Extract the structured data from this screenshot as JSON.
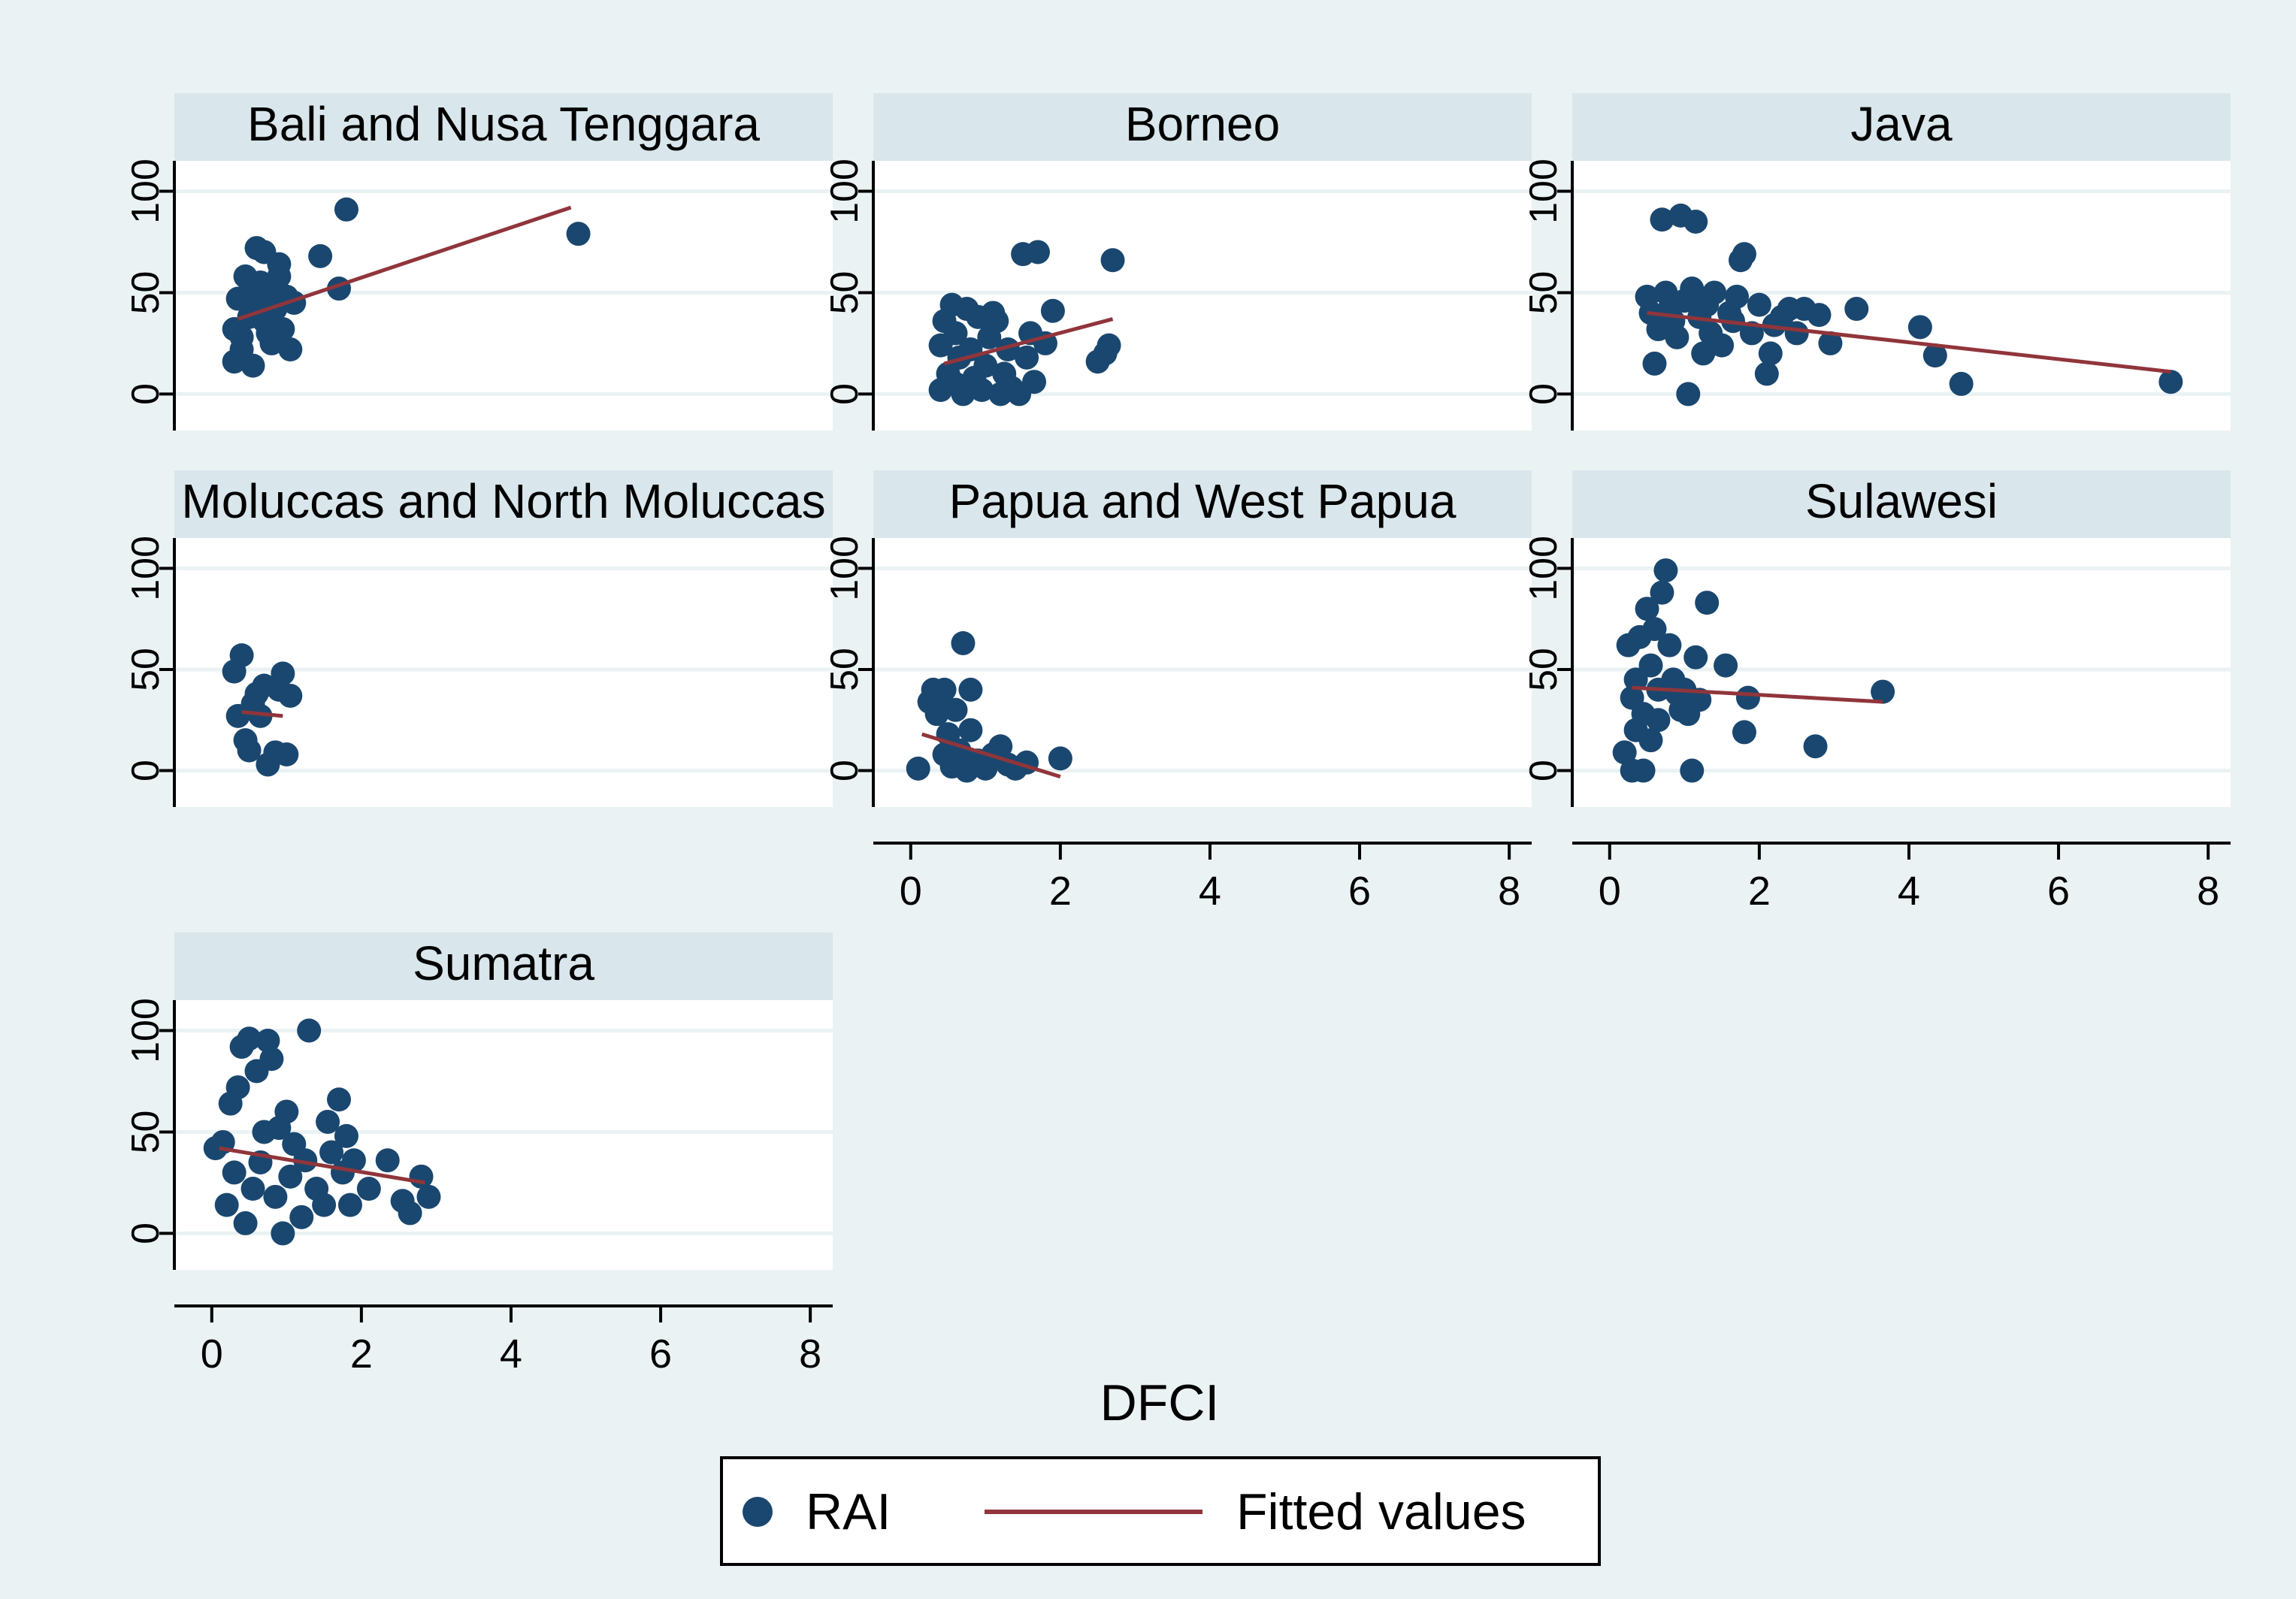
{
  "colors": {
    "outer_bg": "#eaf2f3",
    "plot_bg": "#ffffff",
    "strip_bg": "#d9e6eb",
    "grid": "#eaf2f3",
    "marker": "#1a476f",
    "fit_line": "#90353b",
    "axis": "#000000"
  },
  "chart_data": {
    "type": "scatter",
    "xlabel": "DFCI",
    "ylabel": "",
    "xlim": [
      -0.5,
      8.3
    ],
    "ylim": [
      -18,
      115
    ],
    "xticks": [
      "0",
      "2",
      "4",
      "6",
      "8"
    ],
    "yticks": [
      "0",
      "50",
      "100"
    ],
    "legend": {
      "position": "bottom-center",
      "entries": [
        {
          "label": "RAI",
          "kind": "marker"
        },
        {
          "label": "Fitted values",
          "kind": "line"
        }
      ]
    },
    "panels": [
      {
        "title": "Bali and Nusa Tenggara",
        "points": [
          [
            0.3,
            16
          ],
          [
            0.3,
            32
          ],
          [
            0.35,
            47
          ],
          [
            0.4,
            28
          ],
          [
            0.4,
            22
          ],
          [
            0.45,
            58
          ],
          [
            0.5,
            50
          ],
          [
            0.5,
            38
          ],
          [
            0.55,
            14
          ],
          [
            0.6,
            72
          ],
          [
            0.6,
            46
          ],
          [
            0.65,
            55
          ],
          [
            0.7,
            70
          ],
          [
            0.7,
            36
          ],
          [
            0.75,
            30
          ],
          [
            0.8,
            25
          ],
          [
            0.8,
            50
          ],
          [
            0.85,
            42
          ],
          [
            0.9,
            64
          ],
          [
            0.9,
            58
          ],
          [
            0.95,
            32
          ],
          [
            1.0,
            48
          ],
          [
            1.05,
            22
          ],
          [
            1.1,
            45
          ],
          [
            1.45,
            68
          ],
          [
            1.7,
            52
          ],
          [
            1.8,
            91
          ],
          [
            4.9,
            79
          ]
        ],
        "fit": [
          [
            0.35,
            37
          ],
          [
            4.8,
            92
          ]
        ]
      },
      {
        "title": "Borneo",
        "points": [
          [
            0.4,
            2
          ],
          [
            0.4,
            24
          ],
          [
            0.45,
            36
          ],
          [
            0.5,
            10
          ],
          [
            0.55,
            44
          ],
          [
            0.6,
            30
          ],
          [
            0.6,
            5
          ],
          [
            0.65,
            18
          ],
          [
            0.7,
            0
          ],
          [
            0.75,
            42
          ],
          [
            0.8,
            22
          ],
          [
            0.85,
            8
          ],
          [
            0.9,
            38
          ],
          [
            0.95,
            2
          ],
          [
            1.0,
            14
          ],
          [
            1.05,
            28
          ],
          [
            1.1,
            40
          ],
          [
            1.15,
            36
          ],
          [
            1.2,
            0
          ],
          [
            1.25,
            10
          ],
          [
            1.3,
            22
          ],
          [
            1.35,
            3
          ],
          [
            1.45,
            0
          ],
          [
            1.5,
            69
          ],
          [
            1.55,
            18
          ],
          [
            1.6,
            30
          ],
          [
            1.65,
            6
          ],
          [
            1.7,
            70
          ],
          [
            1.8,
            25
          ],
          [
            1.9,
            41
          ],
          [
            2.5,
            16
          ],
          [
            2.6,
            20
          ],
          [
            2.65,
            24
          ],
          [
            2.7,
            66
          ]
        ],
        "fit": [
          [
            0.45,
            15
          ],
          [
            2.7,
            37
          ]
        ]
      },
      {
        "title": "Java",
        "points": [
          [
            0.5,
            48
          ],
          [
            0.55,
            40
          ],
          [
            0.6,
            15
          ],
          [
            0.65,
            32
          ],
          [
            0.7,
            86
          ],
          [
            0.75,
            50
          ],
          [
            0.8,
            42
          ],
          [
            0.85,
            36
          ],
          [
            0.9,
            28
          ],
          [
            0.95,
            88
          ],
          [
            1.0,
            46
          ],
          [
            1.05,
            0
          ],
          [
            1.1,
            52
          ],
          [
            1.15,
            85
          ],
          [
            1.2,
            38
          ],
          [
            1.25,
            20
          ],
          [
            1.3,
            44
          ],
          [
            1.35,
            30
          ],
          [
            1.4,
            50
          ],
          [
            1.5,
            24
          ],
          [
            1.6,
            40
          ],
          [
            1.65,
            36
          ],
          [
            1.7,
            48
          ],
          [
            1.75,
            66
          ],
          [
            1.8,
            69
          ],
          [
            1.9,
            30
          ],
          [
            2.0,
            44
          ],
          [
            2.1,
            10
          ],
          [
            2.15,
            20
          ],
          [
            2.2,
            34
          ],
          [
            2.3,
            38
          ],
          [
            2.4,
            42
          ],
          [
            2.5,
            30
          ],
          [
            2.6,
            42
          ],
          [
            2.8,
            39
          ],
          [
            2.95,
            25
          ],
          [
            3.3,
            42
          ],
          [
            4.15,
            33
          ],
          [
            4.35,
            19
          ],
          [
            4.7,
            5
          ],
          [
            7.5,
            6
          ]
        ],
        "fit": [
          [
            0.5,
            40
          ],
          [
            7.5,
            11
          ]
        ]
      },
      {
        "title": "Moluccas and North Moluccas",
        "points": [
          [
            0.3,
            49
          ],
          [
            0.35,
            27
          ],
          [
            0.4,
            57
          ],
          [
            0.45,
            15
          ],
          [
            0.5,
            10
          ],
          [
            0.55,
            33
          ],
          [
            0.6,
            38
          ],
          [
            0.65,
            27
          ],
          [
            0.7,
            42
          ],
          [
            0.75,
            3
          ],
          [
            0.85,
            9
          ],
          [
            0.9,
            40
          ],
          [
            0.95,
            48
          ],
          [
            1.0,
            8
          ],
          [
            1.05,
            37
          ]
        ],
        "fit": [
          [
            0.4,
            29
          ],
          [
            0.95,
            27
          ]
        ]
      },
      {
        "title": "Papua and West Papua",
        "points": [
          [
            0.1,
            1
          ],
          [
            0.25,
            34
          ],
          [
            0.3,
            40
          ],
          [
            0.35,
            28
          ],
          [
            0.4,
            36
          ],
          [
            0.45,
            40
          ],
          [
            0.45,
            8
          ],
          [
            0.5,
            18
          ],
          [
            0.55,
            2
          ],
          [
            0.6,
            30
          ],
          [
            0.65,
            10
          ],
          [
            0.7,
            63
          ],
          [
            0.75,
            0
          ],
          [
            0.8,
            20
          ],
          [
            0.8,
            40
          ],
          [
            0.9,
            5
          ],
          [
            1.0,
            1
          ],
          [
            1.1,
            8
          ],
          [
            1.2,
            12
          ],
          [
            1.3,
            3
          ],
          [
            1.4,
            1
          ],
          [
            1.55,
            4
          ],
          [
            2.0,
            6
          ]
        ],
        "fit": [
          [
            0.15,
            18
          ],
          [
            2.0,
            -3
          ]
        ]
      },
      {
        "title": "Sulawesi",
        "points": [
          [
            0.2,
            9
          ],
          [
            0.25,
            62
          ],
          [
            0.3,
            36
          ],
          [
            0.3,
            0
          ],
          [
            0.35,
            20
          ],
          [
            0.35,
            45
          ],
          [
            0.4,
            66
          ],
          [
            0.45,
            28
          ],
          [
            0.45,
            0
          ],
          [
            0.5,
            80
          ],
          [
            0.55,
            52
          ],
          [
            0.55,
            15
          ],
          [
            0.6,
            70
          ],
          [
            0.65,
            40
          ],
          [
            0.65,
            25
          ],
          [
            0.7,
            88
          ],
          [
            0.75,
            99
          ],
          [
            0.8,
            62
          ],
          [
            0.85,
            45
          ],
          [
            0.9,
            38
          ],
          [
            0.95,
            30
          ],
          [
            1.0,
            40
          ],
          [
            1.05,
            28
          ],
          [
            1.1,
            0
          ],
          [
            1.15,
            56
          ],
          [
            1.2,
            35
          ],
          [
            1.3,
            83
          ],
          [
            1.55,
            52
          ],
          [
            1.8,
            19
          ],
          [
            1.85,
            36
          ],
          [
            2.75,
            12
          ],
          [
            3.65,
            39
          ]
        ],
        "fit": [
          [
            0.3,
            41
          ],
          [
            3.65,
            34
          ]
        ]
      },
      {
        "title": "Sumatra",
        "points": [
          [
            0.05,
            42
          ],
          [
            0.15,
            45
          ],
          [
            0.2,
            14
          ],
          [
            0.25,
            64
          ],
          [
            0.3,
            30
          ],
          [
            0.35,
            72
          ],
          [
            0.4,
            92
          ],
          [
            0.45,
            5
          ],
          [
            0.5,
            96
          ],
          [
            0.55,
            22
          ],
          [
            0.6,
            80
          ],
          [
            0.65,
            35
          ],
          [
            0.7,
            50
          ],
          [
            0.75,
            95
          ],
          [
            0.8,
            86
          ],
          [
            0.85,
            18
          ],
          [
            0.9,
            52
          ],
          [
            0.95,
            0
          ],
          [
            1.0,
            60
          ],
          [
            1.05,
            28
          ],
          [
            1.1,
            44
          ],
          [
            1.2,
            8
          ],
          [
            1.25,
            36
          ],
          [
            1.3,
            100
          ],
          [
            1.4,
            22
          ],
          [
            1.5,
            14
          ],
          [
            1.55,
            55
          ],
          [
            1.6,
            40
          ],
          [
            1.7,
            66
          ],
          [
            1.75,
            30
          ],
          [
            1.8,
            48
          ],
          [
            1.85,
            14
          ],
          [
            1.9,
            36
          ],
          [
            2.1,
            22
          ],
          [
            2.35,
            36
          ],
          [
            2.55,
            16
          ],
          [
            2.65,
            10
          ],
          [
            2.8,
            28
          ],
          [
            2.9,
            18
          ]
        ],
        "fit": [
          [
            0.1,
            42
          ],
          [
            2.85,
            25
          ]
        ]
      }
    ]
  }
}
